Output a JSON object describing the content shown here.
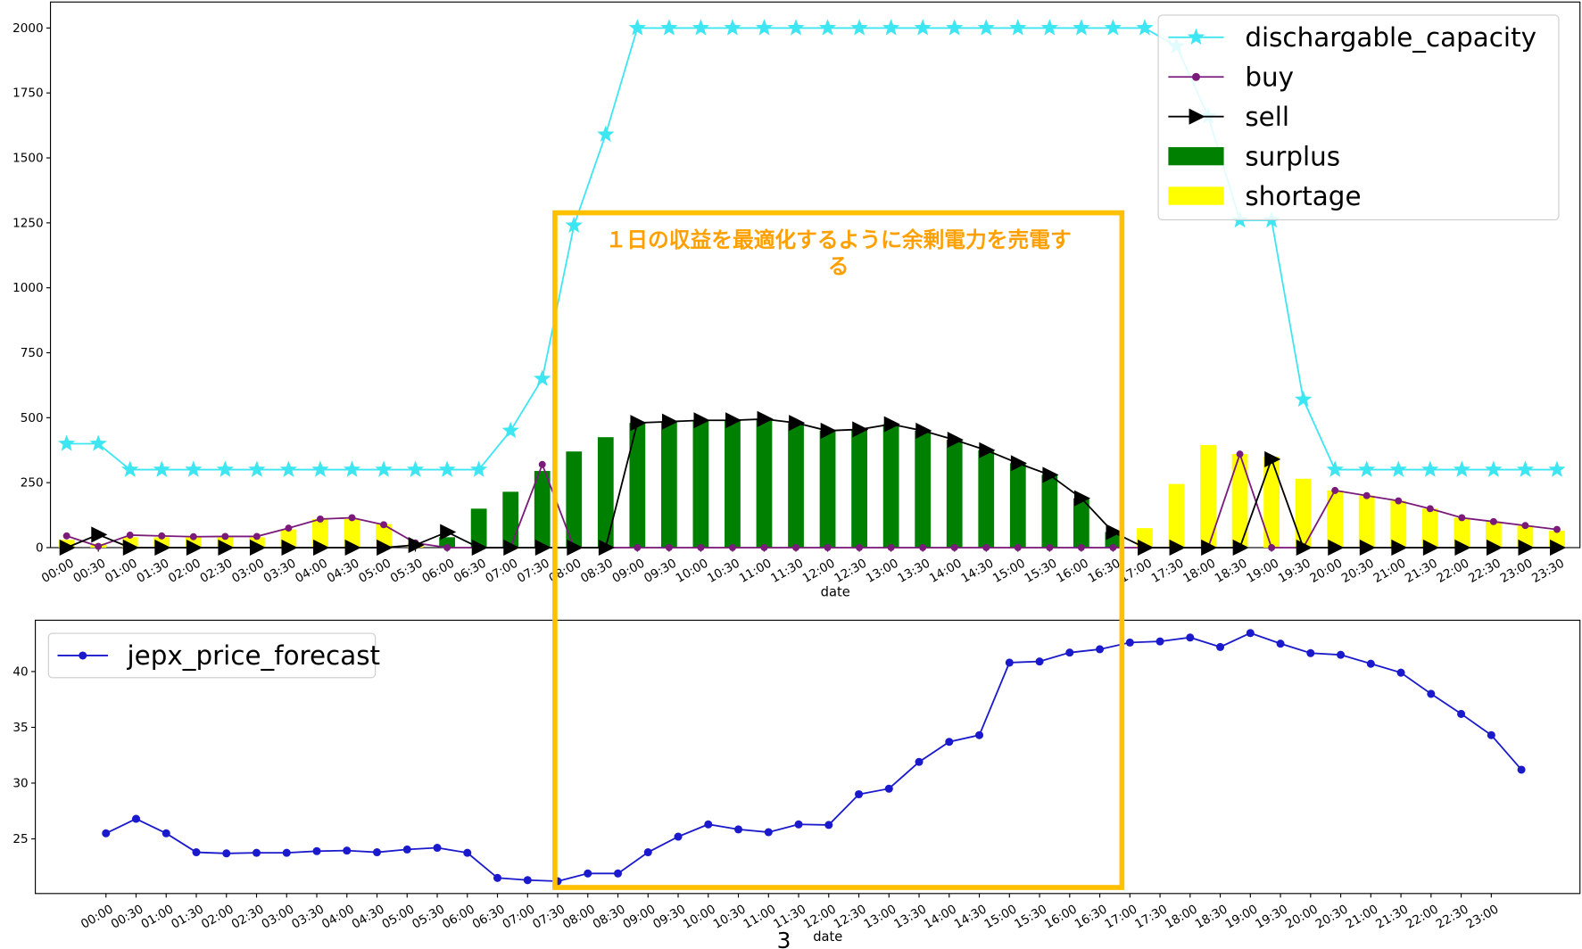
{
  "chart_data": [
    {
      "type": "combo",
      "x_label": "date",
      "categories": [
        "00:00",
        "00:30",
        "01:00",
        "01:30",
        "02:00",
        "02:30",
        "03:00",
        "03:30",
        "04:00",
        "04:30",
        "05:00",
        "05:30",
        "06:00",
        "06:30",
        "07:00",
        "07:30",
        "08:00",
        "08:30",
        "09:00",
        "09:30",
        "10:00",
        "10:30",
        "11:00",
        "11:30",
        "12:00",
        "12:30",
        "13:00",
        "13:30",
        "14:00",
        "14:30",
        "15:00",
        "15:30",
        "16:00",
        "16:30",
        "17:00",
        "17:30",
        "18:00",
        "18:30",
        "19:00",
        "19:30",
        "20:00",
        "20:30",
        "21:00",
        "21:30",
        "22:00",
        "22:30",
        "23:00",
        "23:30"
      ],
      "ylim": [
        0,
        2100
      ],
      "yticks": [
        0,
        250,
        500,
        750,
        1000,
        1250,
        1500,
        1750,
        2000
      ],
      "legend": "upper right",
      "series": [
        {
          "name": "dischargable_capacity",
          "kind": "line",
          "marker": "star",
          "color": "#3ee6f2",
          "values": [
            400,
            400,
            300,
            300,
            300,
            300,
            300,
            300,
            300,
            300,
            300,
            300,
            300,
            300,
            450,
            650,
            1240,
            1590,
            2000,
            2000,
            2000,
            2000,
            2000,
            2000,
            2000,
            2000,
            2000,
            2000,
            2000,
            2000,
            2000,
            2000,
            2000,
            2000,
            2000,
            1930,
            1660,
            1260,
            1260,
            570,
            300,
            300,
            300,
            300,
            300,
            300,
            300,
            300
          ]
        },
        {
          "name": "buy",
          "kind": "line",
          "marker": "circle",
          "color": "#7a1a7a",
          "values": [
            45,
            5,
            48,
            45,
            42,
            43,
            43,
            75,
            110,
            115,
            88,
            18,
            0,
            0,
            0,
            320,
            0,
            0,
            0,
            0,
            0,
            0,
            0,
            0,
            0,
            0,
            0,
            0,
            0,
            0,
            0,
            0,
            0,
            0,
            0,
            0,
            0,
            360,
            0,
            0,
            220,
            200,
            180,
            150,
            115,
            100,
            85,
            70
          ]
        },
        {
          "name": "sell",
          "kind": "line",
          "marker": "triangle",
          "color": "#000000",
          "values": [
            0,
            50,
            0,
            0,
            0,
            0,
            0,
            0,
            0,
            0,
            0,
            10,
            60,
            0,
            0,
            0,
            0,
            0,
            480,
            485,
            490,
            490,
            495,
            480,
            450,
            455,
            475,
            450,
            415,
            375,
            325,
            280,
            190,
            60,
            0,
            0,
            0,
            0,
            340,
            0,
            0,
            0,
            0,
            0,
            0,
            0,
            0,
            0
          ]
        },
        {
          "name": "surplus",
          "kind": "bar",
          "color": "#008000",
          "values": [
            0,
            0,
            0,
            0,
            0,
            0,
            0,
            0,
            0,
            0,
            0,
            0,
            40,
            150,
            215,
            295,
            370,
            425,
            480,
            485,
            490,
            490,
            495,
            480,
            450,
            455,
            475,
            450,
            415,
            375,
            325,
            280,
            190,
            60,
            0,
            0,
            0,
            0,
            0,
            0,
            0,
            0,
            0,
            0,
            0,
            0,
            0,
            0
          ]
        },
        {
          "name": "shortage",
          "kind": "bar",
          "color": "#ffff00",
          "values": [
            30,
            15,
            40,
            40,
            40,
            40,
            40,
            70,
            110,
            110,
            90,
            15,
            0,
            0,
            0,
            0,
            0,
            0,
            0,
            0,
            0,
            0,
            0,
            0,
            0,
            0,
            0,
            0,
            0,
            0,
            0,
            0,
            0,
            0,
            75,
            245,
            395,
            360,
            350,
            265,
            220,
            200,
            180,
            150,
            115,
            100,
            85,
            65
          ]
        }
      ]
    },
    {
      "type": "line",
      "x_label": "date",
      "categories": [
        "00:00",
        "00:30",
        "01:00",
        "01:30",
        "02:00",
        "02:30",
        "03:00",
        "03:30",
        "04:00",
        "04:30",
        "05:00",
        "05:30",
        "06:00",
        "06:30",
        "07:00",
        "07:30",
        "08:00",
        "08:30",
        "09:00",
        "09:30",
        "10:00",
        "10:30",
        "11:00",
        "11:30",
        "12:00",
        "12:30",
        "13:00",
        "13:30",
        "14:00",
        "14:30",
        "15:00",
        "15:30",
        "16:00",
        "16:30",
        "17:00",
        "17:30",
        "18:00",
        "18:30",
        "19:00",
        "19:30",
        "20:00",
        "20:30",
        "21:00",
        "21:30",
        "22:00",
        "22:30",
        "23:00",
        null
      ],
      "ylim": [
        20.1,
        44.6
      ],
      "yticks": [
        25,
        30,
        35,
        40
      ],
      "legend": "upper left",
      "series": [
        {
          "name": "jepx_price_forecast",
          "kind": "line",
          "marker": "circle",
          "color": "#1a1acc",
          "values": [
            25.5,
            26.8,
            25.5,
            23.8,
            23.7,
            23.75,
            23.75,
            23.9,
            23.95,
            23.8,
            24.05,
            24.2,
            23.75,
            21.5,
            21.3,
            21.2,
            21.9,
            21.9,
            23.8,
            25.2,
            26.3,
            25.85,
            25.6,
            26.3,
            26.25,
            29.0,
            29.5,
            31.9,
            33.7,
            34.3,
            40.8,
            40.9,
            41.7,
            42.0,
            42.6,
            42.7,
            43.05,
            42.2,
            43.45,
            42.5,
            41.65,
            41.5,
            40.7,
            39.9,
            38.0,
            36.2,
            34.3,
            31.2
          ]
        }
      ]
    }
  ],
  "annotation": [
    "１日の収益を最適化するように余剰電力を売電す",
    "る"
  ],
  "page_number": "3"
}
